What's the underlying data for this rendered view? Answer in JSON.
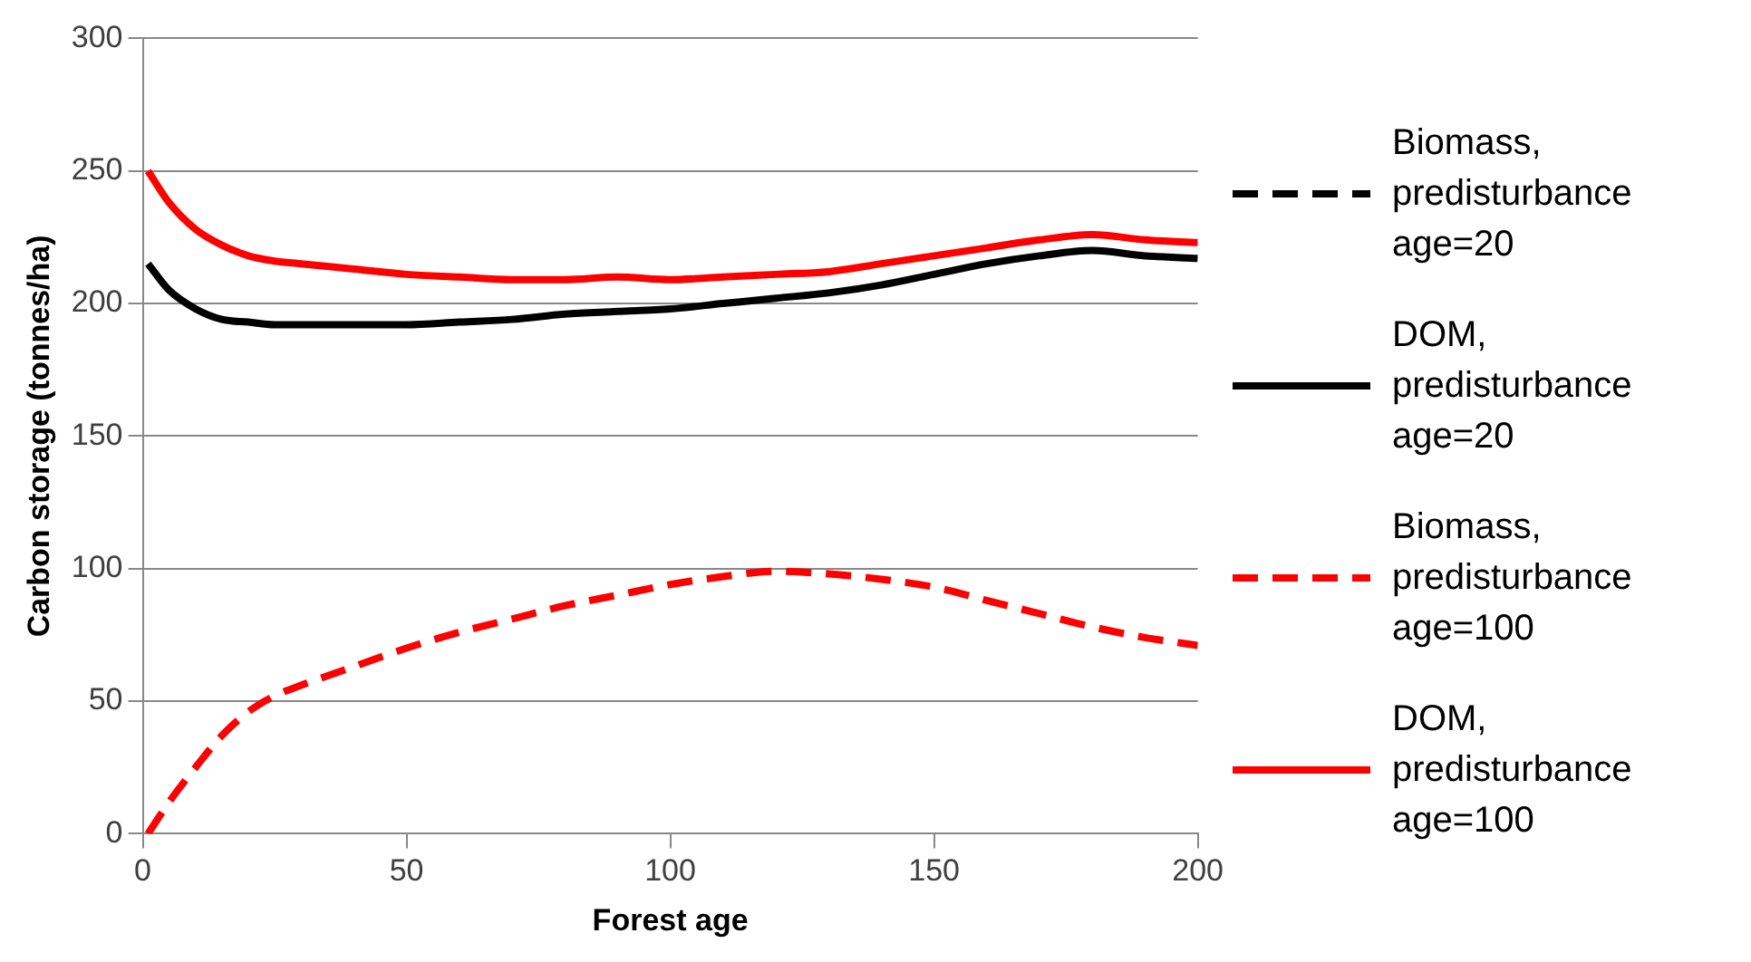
{
  "chart_data": {
    "type": "line",
    "xlabel": "Forest age",
    "ylabel": "Carbon storage (tonnes/ha)",
    "x": [
      1,
      5,
      10,
      15,
      20,
      25,
      30,
      40,
      50,
      60,
      70,
      80,
      90,
      100,
      110,
      120,
      130,
      140,
      150,
      160,
      170,
      180,
      190,
      200
    ],
    "series": [
      {
        "name": "Biomass, predisturbance age=20",
        "color": "#000000",
        "line_style": "dashed",
        "values": [
          null,
          null,
          null,
          null,
          null,
          null,
          null,
          null,
          null,
          null,
          null,
          null,
          null,
          null,
          null,
          null,
          null,
          null,
          null,
          null,
          null,
          null,
          null,
          null
        ]
      },
      {
        "name": "DOM, predisturbance age=20",
        "color": "#000000",
        "line_style": "solid",
        "values": [
          215,
          205,
          198,
          194,
          193,
          192,
          192,
          192,
          192,
          193,
          194,
          196,
          197,
          198,
          200,
          202,
          204,
          207,
          211,
          215,
          218,
          220,
          218,
          217
        ]
      },
      {
        "name": "Biomass, predisturbance age=100",
        "color": "#ff0000",
        "line_style": "dashed",
        "values": [
          0,
          12,
          25,
          37,
          46,
          52,
          56,
          63,
          70,
          76,
          81,
          86,
          90,
          94,
          97,
          99,
          98,
          96,
          93,
          88,
          83,
          78,
          74,
          71
        ]
      },
      {
        "name": "DOM, predisturbance age=100",
        "color": "#ff0000",
        "line_style": "solid",
        "values": [
          250,
          238,
          228,
          222,
          218,
          216,
          215,
          213,
          211,
          210,
          209,
          209,
          210,
          209,
          210,
          211,
          212,
          215,
          218,
          221,
          224,
          226,
          224,
          223
        ]
      }
    ],
    "xlim": [
      0,
      200
    ],
    "xticks": [
      0,
      50,
      100,
      150,
      200
    ],
    "ylim": [
      0,
      300
    ],
    "yticks": [
      0,
      50,
      100,
      150,
      200,
      250,
      300
    ],
    "grid": "y",
    "legend": "right",
    "marker": "none"
  }
}
